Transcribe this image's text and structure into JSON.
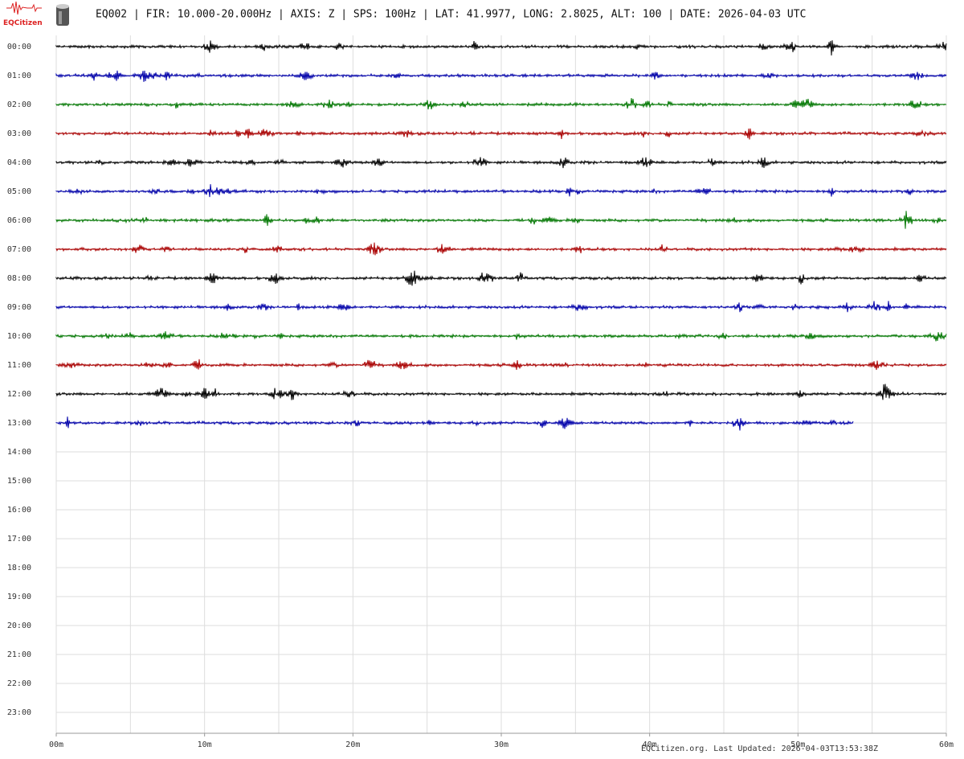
{
  "header": {
    "logo_text": "EQCitizen",
    "title": "EQ002 | FIR: 10.000-20.000Hz | AXIS: Z | SPS: 100Hz | LAT: 41.9977, LONG: 2.8025, ALT: 100 | DATE: 2026-04-03 UTC"
  },
  "hour_labels": [
    "00:00",
    "01:00",
    "02:00",
    "03:00",
    "04:00",
    "05:00",
    "06:00",
    "07:00",
    "08:00",
    "09:00",
    "10:00",
    "11:00",
    "12:00",
    "13:00",
    "14:00",
    "15:00",
    "16:00",
    "17:00",
    "18:00",
    "19:00",
    "20:00",
    "21:00",
    "22:00",
    "23:00"
  ],
  "minute_labels": [
    "00m",
    "10m",
    "20m",
    "30m",
    "40m",
    "50m",
    "60m"
  ],
  "footer": "EQCitizen.org. Last Updated: 2026-04-03T13:53:38Z",
  "trace_colors": [
    "#000000",
    "#0000aa",
    "#007700",
    "#aa0000"
  ]
}
